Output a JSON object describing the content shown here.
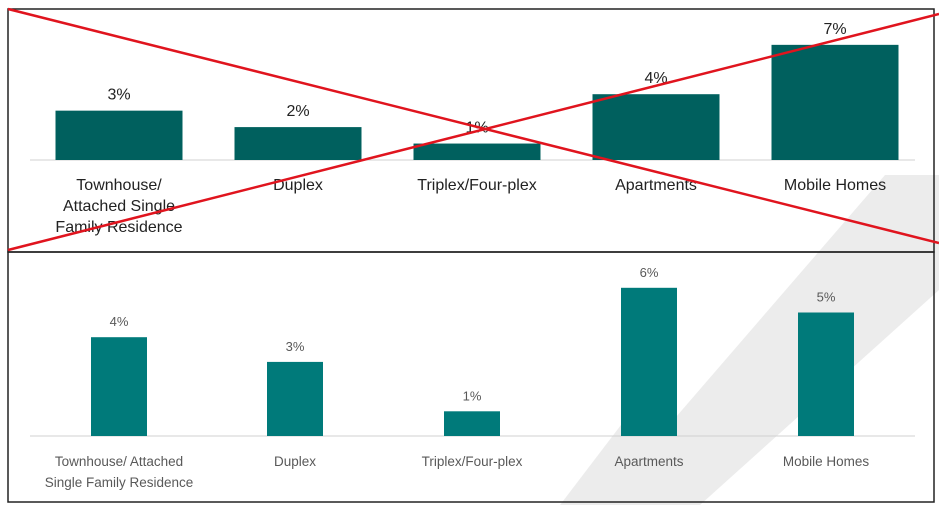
{
  "chart_data": [
    {
      "type": "bar",
      "categories": [
        "Townhouse/ Attached Single Family Residence",
        "Duplex",
        "Triplex/Four-plex",
        "Apartments",
        "Mobile Homes"
      ],
      "category_lines": [
        [
          "Townhouse/",
          "Attached Single",
          "Family Residence"
        ],
        [
          "Duplex"
        ],
        [
          "Triplex/Four-plex"
        ],
        [
          "Apartments"
        ],
        [
          "Mobile Homes"
        ]
      ],
      "values": [
        3,
        2,
        1,
        4,
        7
      ],
      "data_labels": [
        "3%",
        "2%",
        "1%",
        "4%",
        "7%"
      ],
      "unit": "%",
      "ylim": [
        0,
        7
      ],
      "bar_color": "#00605e",
      "label_color": "#222222",
      "crossed_out": true,
      "cross_color": "#e0141e"
    },
    {
      "type": "bar",
      "categories": [
        "Townhouse/ Attached Single Family Residence",
        "Duplex",
        "Triplex/Four-plex",
        "Apartments",
        "Mobile Homes"
      ],
      "category_lines": [
        [
          "Townhouse/ Attached",
          "Single Family Residence"
        ],
        [
          "Duplex"
        ],
        [
          "Triplex/Four-plex"
        ],
        [
          "Apartments"
        ],
        [
          "Mobile Homes"
        ]
      ],
      "values": [
        4,
        3,
        1,
        6,
        5
      ],
      "data_labels": [
        "4%",
        "3%",
        "1%",
        "6%",
        "5%"
      ],
      "unit": "%",
      "ylim": [
        0,
        6
      ],
      "bar_color": "#007a7a",
      "label_color": "#595959",
      "crossed_out": false
    }
  ],
  "colors": {
    "watermark": "#ececec"
  }
}
